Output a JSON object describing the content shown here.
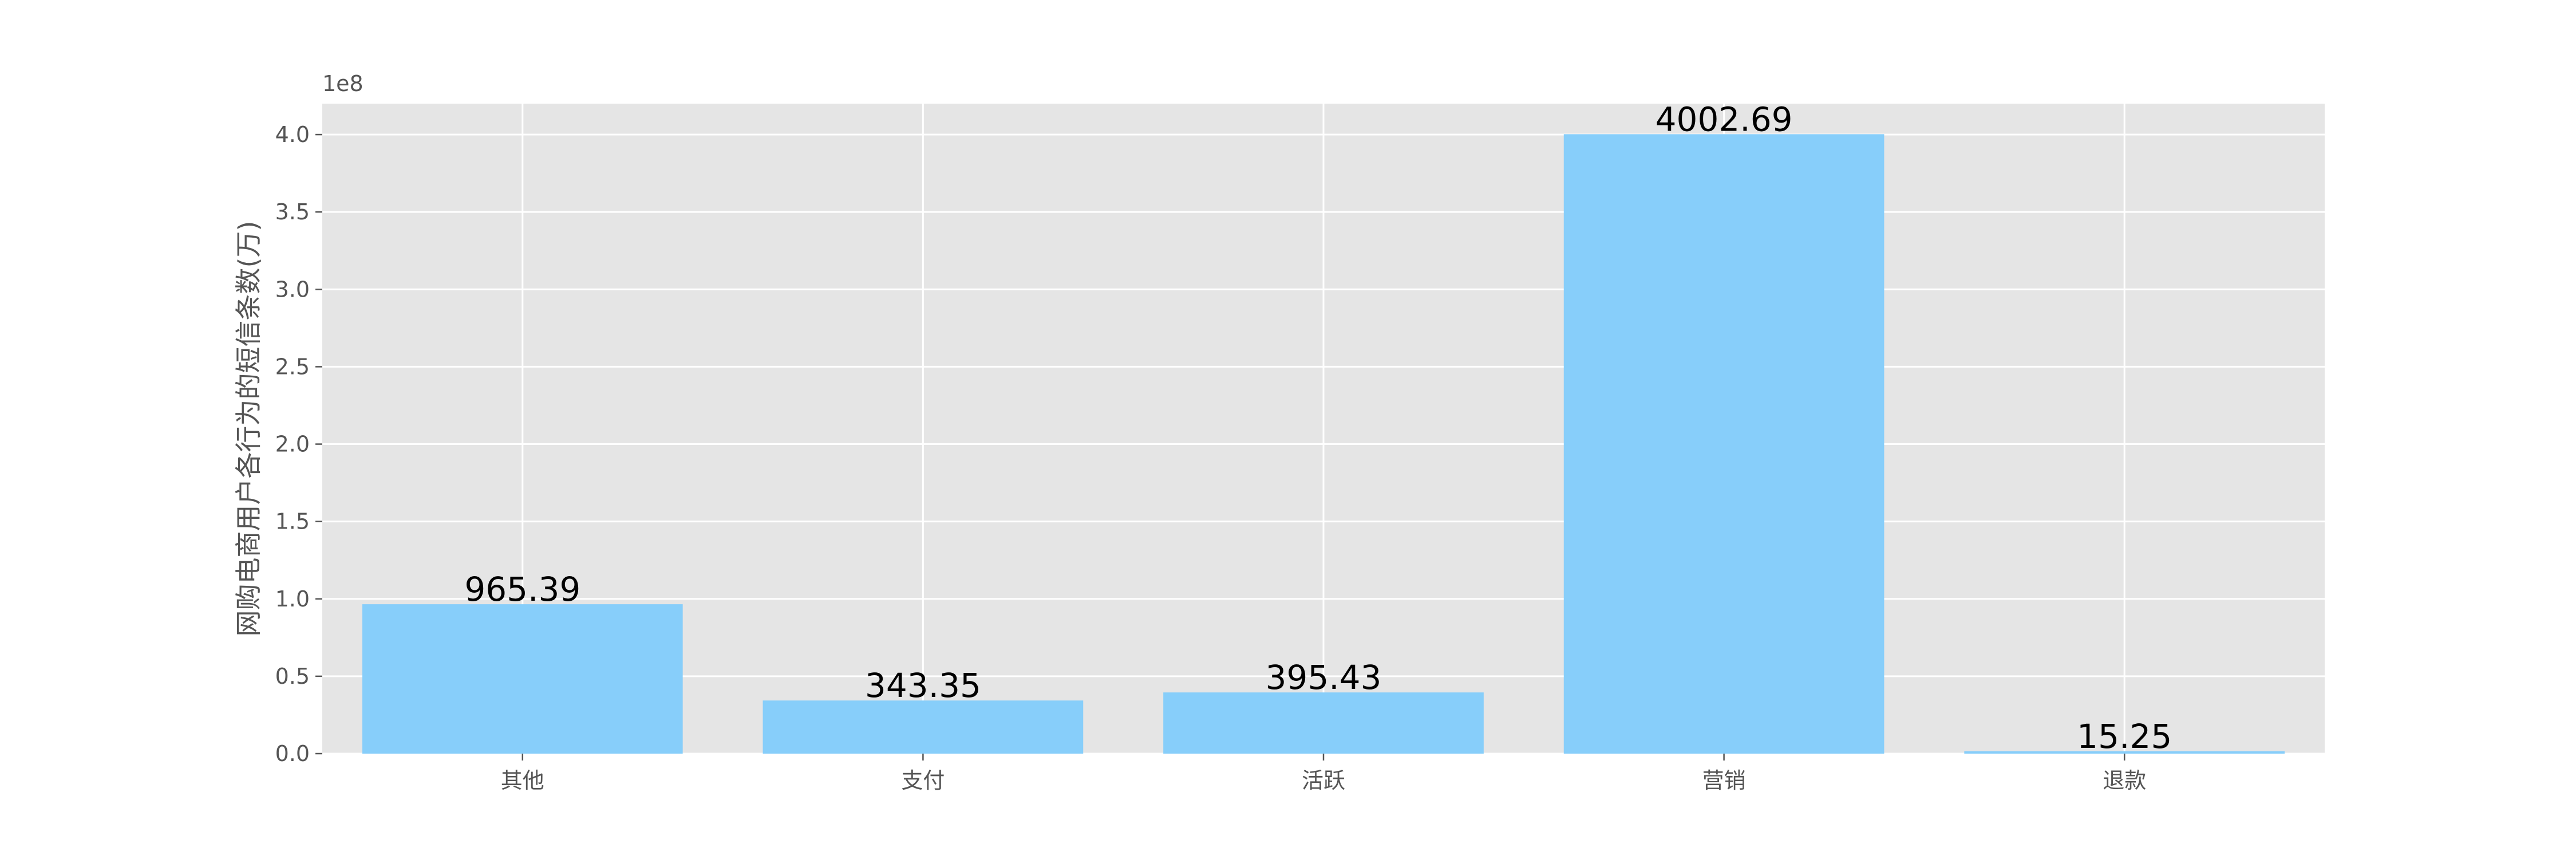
{
  "chart_data": {
    "type": "bar",
    "style": "ggplot",
    "categories": [
      "其他",
      "支付",
      "活跃",
      "营销",
      "退款"
    ],
    "values": [
      96539000,
      34335000,
      39543000,
      400269000,
      1525000
    ],
    "data_labels": [
      "965.39",
      "343.35",
      "395.43",
      "4002.69",
      "15.25"
    ],
    "title": "",
    "xlabel": "",
    "ylabel": "网购电商用户各行为的短信条数(万)",
    "y_offset_label": "1e8",
    "ylim": [
      0,
      420000000
    ],
    "y_ticks": [
      0,
      50000000,
      100000000,
      150000000,
      200000000,
      250000000,
      300000000,
      350000000,
      400000000
    ],
    "y_tick_labels": [
      "0.0",
      "0.5",
      "1.0",
      "1.5",
      "2.0",
      "2.5",
      "3.0",
      "3.5",
      "4.0"
    ],
    "grid": true,
    "colors": {
      "bar": "#87CEFA",
      "plot_background": "#E5E5E5",
      "grid": "#FFFFFF",
      "text": "#555555",
      "data_label": "#000000"
    }
  }
}
